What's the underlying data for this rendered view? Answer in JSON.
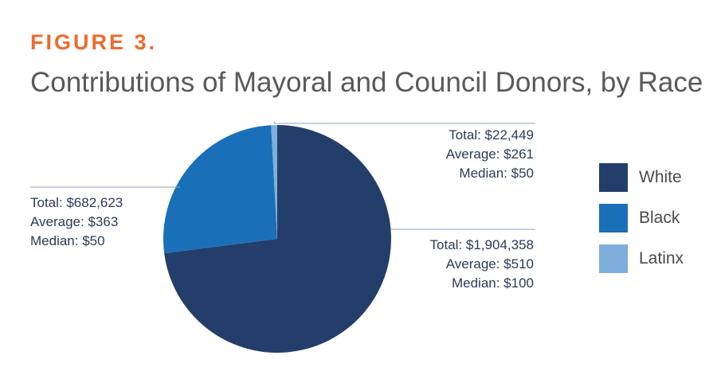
{
  "figure": {
    "label": "FIGURE 3.",
    "title": "Contributions of Mayoral and Council Donors, by Race"
  },
  "colors": {
    "label_orange": "#ee6a2c",
    "title_gray": "#58595b",
    "white_slice": "#243e6b",
    "black_slice": "#1a70b8",
    "latinx_slice": "#7eaedc"
  },
  "chart_data": {
    "type": "pie",
    "legend_position": "right",
    "slices": [
      {
        "name": "White",
        "value": 1904358,
        "color": "#243e6b",
        "annotation": {
          "total": "Total: $1,904,358",
          "average": "Average: $510",
          "median": "Median: $100"
        }
      },
      {
        "name": "Black",
        "value": 682623,
        "color": "#1a70b8",
        "annotation": {
          "total": "Total: $682,623",
          "average": "Average: $363",
          "median": "Median: $50"
        }
      },
      {
        "name": "Latinx",
        "value": 22449,
        "color": "#7eaedc",
        "annotation": {
          "total": "Total: $22,449",
          "average": "Average: $261",
          "median": "Median: $50"
        }
      }
    ]
  }
}
